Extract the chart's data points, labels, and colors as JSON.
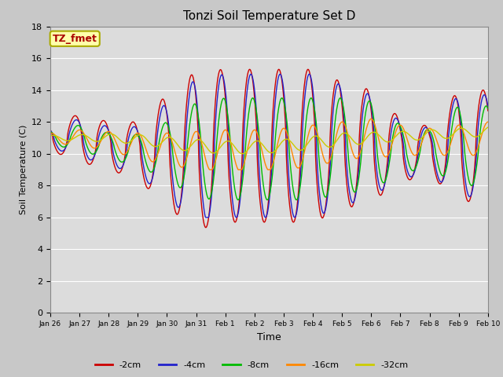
{
  "title": "Tonzi Soil Temperature Set D",
  "xlabel": "Time",
  "ylabel": "Soil Temperature (C)",
  "ylim": [
    0,
    18
  ],
  "yticks": [
    0,
    2,
    4,
    6,
    8,
    10,
    12,
    14,
    16,
    18
  ],
  "xtick_labels": [
    "Jan 26",
    "Jan 27",
    "Jan 28",
    "Jan 29",
    "Jan 30",
    "Jan 31",
    "Feb 1",
    "Feb 2",
    "Feb 3",
    "Feb 4",
    "Feb 5",
    "Feb 6",
    "Feb 7",
    "Feb 8",
    "Feb 9",
    "Feb 10"
  ],
  "series_colors": [
    "#cc0000",
    "#2222cc",
    "#00bb00",
    "#ff8800",
    "#cccc00"
  ],
  "series_labels": [
    "-2cm",
    "-4cm",
    "-8cm",
    "-16cm",
    "-32cm"
  ],
  "annotation_text": "TZ_fmet",
  "annotation_bg": "#ffffaa",
  "annotation_fg": "#aa0000",
  "fig_bg": "#c8c8c8",
  "plot_bg": "#dcdcdc",
  "grid_color": "#ffffff",
  "title_fontsize": 11,
  "legend_fontsize": 8
}
